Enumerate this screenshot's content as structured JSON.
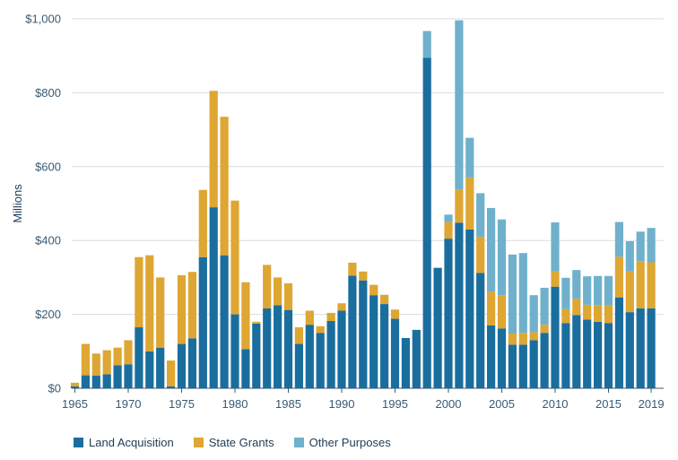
{
  "chart_data": {
    "type": "bar",
    "stacked": true,
    "ylabel": "Millions",
    "ylim": [
      0,
      1000
    ],
    "y_ticks": [
      0,
      200,
      400,
      600,
      800,
      1000
    ],
    "y_tick_labels": [
      "$0",
      "$200",
      "$400",
      "$600",
      "$800",
      "$1,000"
    ],
    "x_ticks": [
      1965,
      1970,
      1975,
      1980,
      1985,
      1990,
      1995,
      2000,
      2005,
      2010,
      2015,
      2019
    ],
    "x_tick_labels": [
      "1965",
      "1970",
      "1975",
      "1980",
      "1985",
      "1990",
      "1995",
      "2000",
      "2005",
      "2010",
      "2015",
      "2019"
    ],
    "grid": "horizontal",
    "legend_position": "bottom-left",
    "categories": [
      1965,
      1966,
      1967,
      1968,
      1969,
      1970,
      1971,
      1972,
      1973,
      1974,
      1975,
      1976,
      1977,
      1978,
      1979,
      1980,
      1981,
      1982,
      1983,
      1984,
      1985,
      1986,
      1987,
      1988,
      1989,
      1990,
      1991,
      1992,
      1993,
      1994,
      1995,
      1996,
      1997,
      1998,
      1999,
      2000,
      2001,
      2002,
      2003,
      2004,
      2005,
      2006,
      2007,
      2008,
      2009,
      2010,
      2011,
      2012,
      2013,
      2014,
      2015,
      2016,
      2017,
      2018,
      2019
    ],
    "series": [
      {
        "name": "Land Acquisition",
        "color": "#1a6e9e",
        "values": [
          5,
          35,
          34,
          38,
          62,
          65,
          165,
          100,
          110,
          5,
          120,
          135,
          355,
          490,
          360,
          200,
          106,
          175,
          216,
          225,
          212,
          120,
          172,
          150,
          182,
          210,
          305,
          292,
          252,
          228,
          188,
          136,
          158,
          895,
          326,
          405,
          448,
          430,
          312,
          170,
          162,
          118,
          118,
          130,
          150,
          275,
          176,
          198,
          186,
          180,
          176,
          246,
          206,
          216,
          216
        ]
      },
      {
        "name": "State Grants",
        "color": "#dea632",
        "values": [
          10,
          85,
          60,
          65,
          48,
          65,
          190,
          260,
          190,
          70,
          186,
          180,
          182,
          315,
          375,
          308,
          181,
          5,
          118,
          75,
          72,
          45,
          38,
          18,
          22,
          20,
          35,
          24,
          28,
          25,
          25,
          0,
          0,
          0,
          0,
          45,
          90,
          140,
          98,
          92,
          90,
          30,
          32,
          22,
          22,
          42,
          38,
          44,
          40,
          45,
          48,
          110,
          110,
          128,
          125
        ]
      },
      {
        "name": "Other Purposes",
        "color": "#6fb1cc",
        "values": [
          0,
          0,
          0,
          0,
          0,
          0,
          0,
          0,
          0,
          0,
          0,
          0,
          0,
          0,
          0,
          0,
          0,
          0,
          0,
          0,
          0,
          0,
          0,
          0,
          0,
          0,
          0,
          0,
          0,
          0,
          0,
          0,
          0,
          72,
          0,
          20,
          458,
          108,
          118,
          226,
          205,
          214,
          216,
          100,
          100,
          132,
          85,
          78,
          77,
          79,
          80,
          94,
          82,
          80,
          93
        ]
      }
    ]
  }
}
